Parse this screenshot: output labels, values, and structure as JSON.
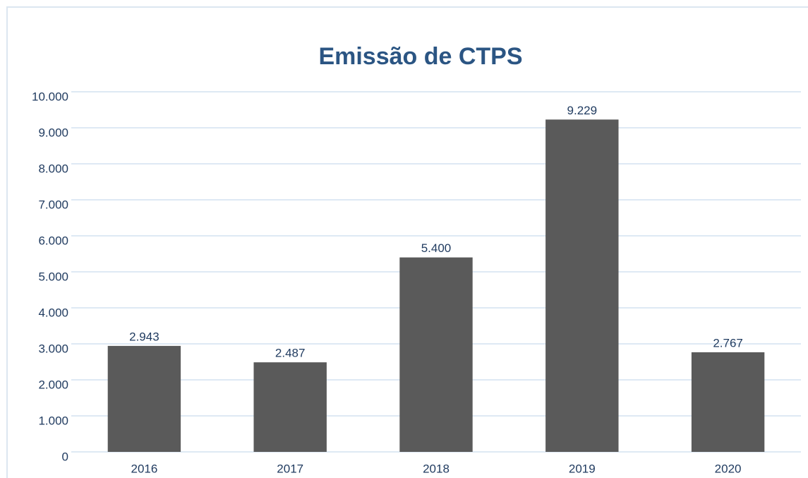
{
  "chart_data": {
    "type": "bar",
    "title": "Emissão de CTPS",
    "categories": [
      "2016",
      "2017",
      "2018",
      "2019",
      "2020"
    ],
    "values": [
      2943,
      2487,
      5400,
      9229,
      2767
    ],
    "value_labels": [
      "2.943",
      "2.487",
      "5.400",
      "9.229",
      "2.767"
    ],
    "color": "#5a5a5a",
    "ylim": [
      0,
      10000
    ],
    "yticks": [
      0,
      {
        "value": 1000,
        "label": "1.000"
      },
      {
        "value": 2000,
        "label": "2.000"
      },
      {
        "value": 3000,
        "label": "3.000"
      },
      {
        "value": 4000,
        "label": "4.000"
      },
      {
        "value": 5000,
        "label": "5.000"
      },
      {
        "value": 6000,
        "label": "6.000"
      },
      {
        "value": 7000,
        "label": "7.000"
      },
      {
        "value": 8000,
        "label": "8.000"
      },
      {
        "value": 9000,
        "label": "9.000"
      },
      {
        "value": 10000,
        "label": "10.000"
      }
    ],
    "grid": true
  }
}
